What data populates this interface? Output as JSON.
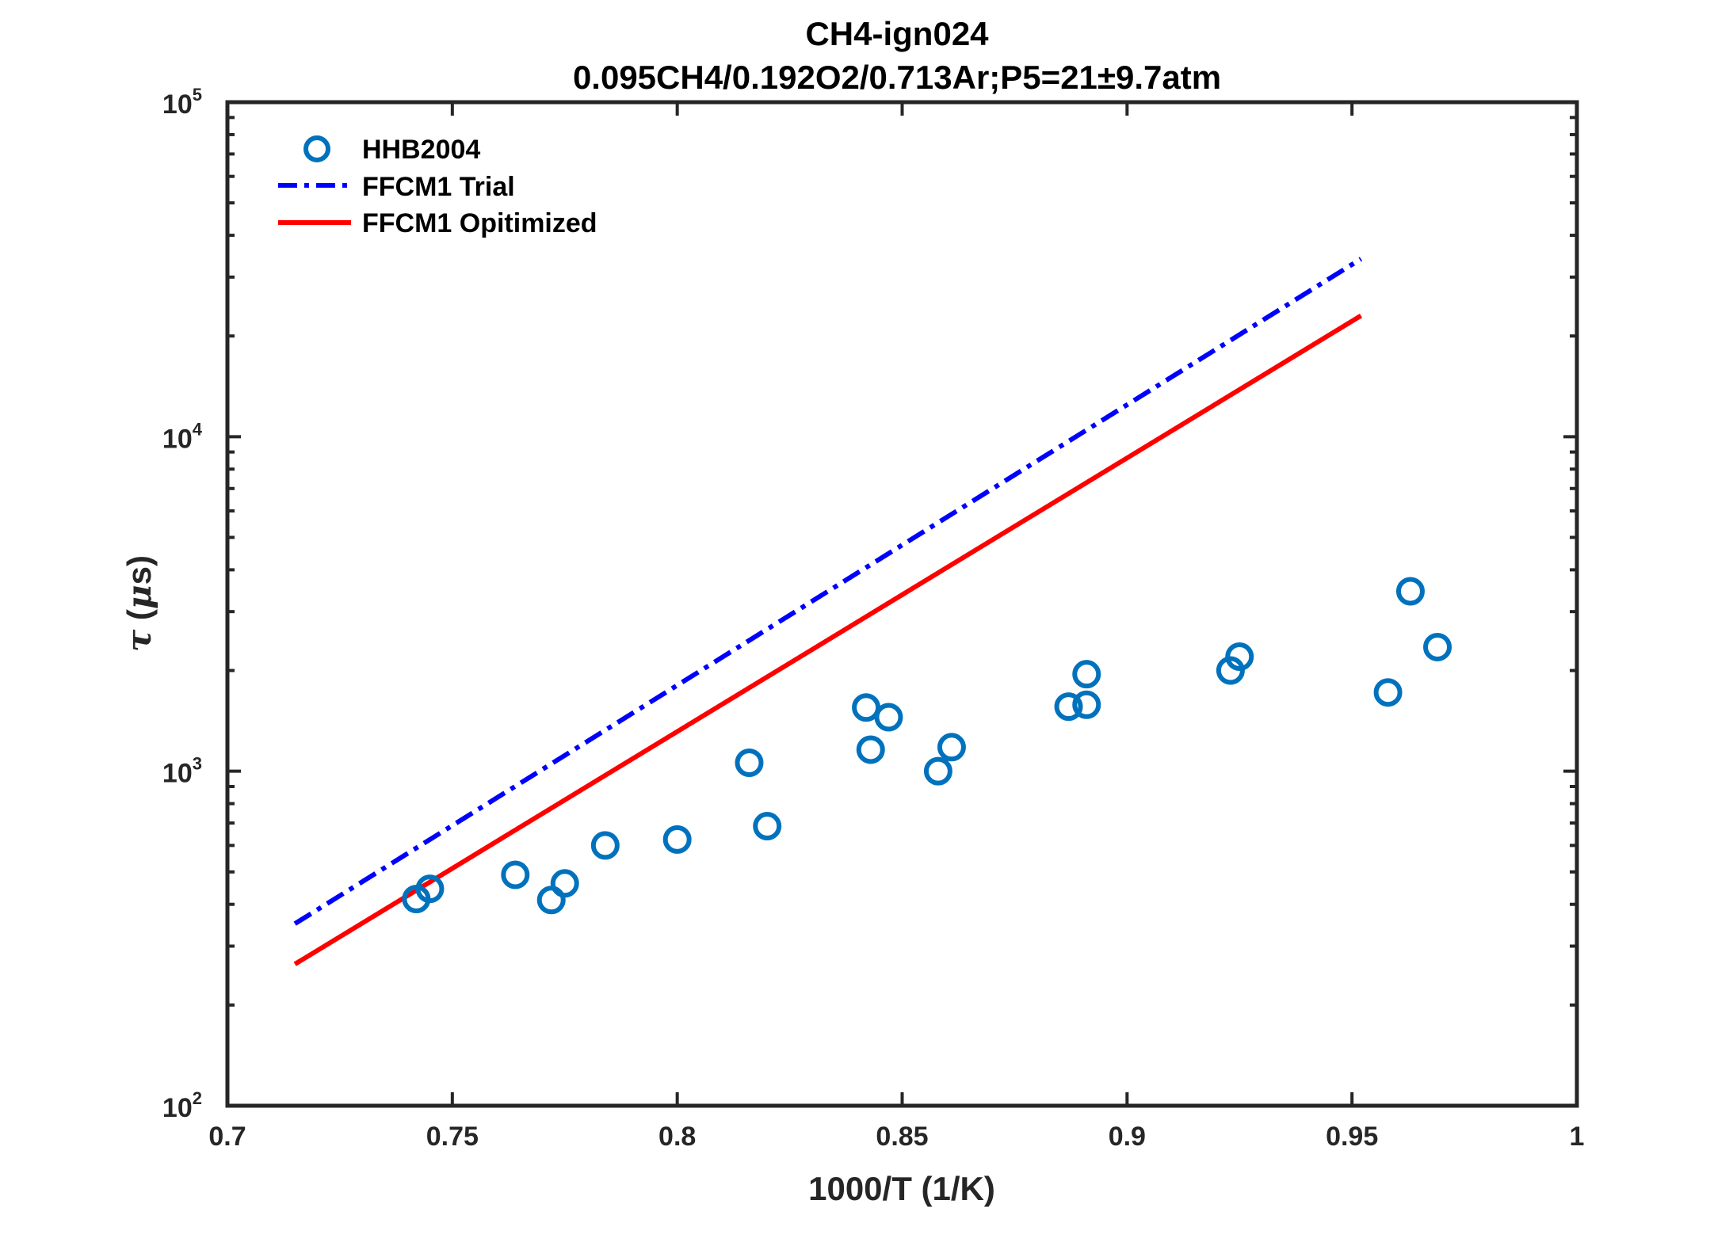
{
  "chart_data": {
    "type": "scatter",
    "title": "CH4-ign024",
    "subtitle": "0.095CH4/0.192O2/0.713Ar;P5=21±9.7atm",
    "xlabel": "1000/T (1/K)",
    "ylabel": {
      "symbol": "τ",
      "mid": " (",
      "mu": "μ",
      "tail": "s)"
    },
    "xlim": [
      0.7,
      1.0
    ],
    "ylim": [
      100,
      100000
    ],
    "yscale": "log",
    "xticks": [
      0.7,
      0.75,
      0.8,
      0.85,
      0.9,
      0.95,
      1.0
    ],
    "xtick_labels": [
      "0.7",
      "0.75",
      "0.8",
      "0.85",
      "0.9",
      "0.95",
      "1"
    ],
    "yticks": [
      {
        "value": 100,
        "base": "10",
        "exp": "2"
      },
      {
        "value": 1000,
        "base": "10",
        "exp": "3"
      },
      {
        "value": 10000,
        "base": "10",
        "exp": "4"
      },
      {
        "value": 100000,
        "base": "10",
        "exp": "5"
      }
    ],
    "legend_position": "top-left",
    "series": [
      {
        "name": "HHB2004",
        "kind": "markers",
        "color": "#0072BD",
        "x": [
          0.742,
          0.745,
          0.764,
          0.772,
          0.775,
          0.784,
          0.8,
          0.816,
          0.82,
          0.842,
          0.843,
          0.847,
          0.858,
          0.861,
          0.887,
          0.891,
          0.891,
          0.923,
          0.925,
          0.958,
          0.963,
          0.969
        ],
        "y": [
          415,
          445,
          490,
          412,
          462,
          600,
          625,
          1060,
          685,
          1550,
          1160,
          1450,
          1000,
          1180,
          1560,
          1950,
          1580,
          2000,
          2200,
          1720,
          3450,
          2350
        ]
      },
      {
        "name": "FFCM1 Trial",
        "kind": "dashdot",
        "color": "#0000FF",
        "x": [
          0.715,
          0.952
        ],
        "y": [
          350,
          34000
        ]
      },
      {
        "name": "FFCM1 Opitimized",
        "kind": "solid",
        "color": "#FF0000",
        "x": [
          0.715,
          0.952
        ],
        "y": [
          265,
          23000
        ]
      }
    ]
  }
}
